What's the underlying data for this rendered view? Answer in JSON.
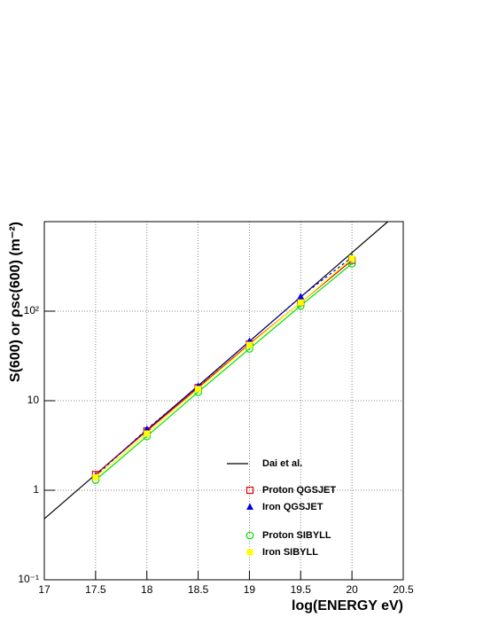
{
  "chart_data": {
    "type": "line",
    "x_label": "log(ENERGY eV)",
    "y_label": "S(600) or ρsc(600) (m⁻²)",
    "x": [
      17.5,
      18,
      18.5,
      19,
      19.5,
      20
    ],
    "xlim": [
      17,
      20.5
    ],
    "xticks": [
      17,
      17.5,
      18,
      18.5,
      19,
      19.5,
      20,
      20.5
    ],
    "ylim": [
      0.1,
      1000
    ],
    "log_y": true,
    "yticks": [
      {
        "value": 0.1,
        "label": "10⁻¹"
      },
      1,
      10,
      {
        "value": 100,
        "label": "10²"
      }
    ],
    "grid": true,
    "series": [
      {
        "name": "Dai et al.",
        "color": "#000000",
        "line_style": "solid",
        "marker": "none",
        "x": [
          17,
          20.35
        ],
        "values": [
          0.48,
          1000
        ]
      },
      {
        "name": "Proton QGSJET",
        "color": "#e00000",
        "line_style": "solid",
        "marker": "open-square",
        "values": [
          1.5,
          4.6,
          14,
          43,
          125,
          370
        ]
      },
      {
        "name": "Iron QGSJET",
        "color": "#0000ee",
        "line_style": "dashed",
        "marker": "triangle",
        "values": [
          1.45,
          4.8,
          14.5,
          46,
          145,
          400
        ]
      },
      {
        "name": "Proton SIBYLL",
        "color": "#00e000",
        "line_style": "solid",
        "marker": "open-circle",
        "values": [
          1.3,
          4.0,
          12.5,
          38,
          115,
          340
        ]
      },
      {
        "name": "Iron SIBYLL",
        "color": "#ffff00",
        "line_style": "solid",
        "marker": "filled-square",
        "values": [
          1.4,
          4.3,
          13.5,
          42,
          125,
          390
        ]
      }
    ]
  }
}
